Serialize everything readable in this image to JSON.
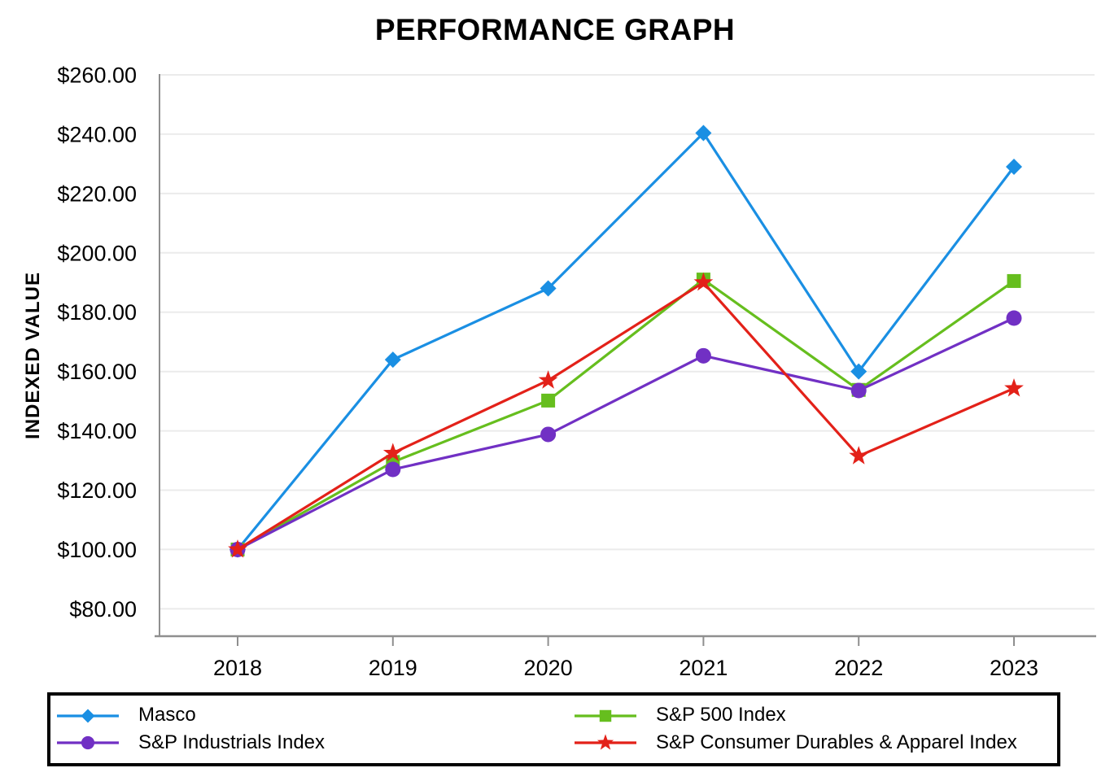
{
  "title": "PERFORMANCE GRAPH",
  "chart_data": {
    "type": "line",
    "title": "PERFORMANCE GRAPH",
    "xlabel": "",
    "ylabel": "INDEXED VALUE",
    "x": [
      2018,
      2019,
      2020,
      2021,
      2022,
      2023
    ],
    "x_tick_labels": [
      "2018",
      "2019",
      "2020",
      "2021",
      "2022",
      "2023"
    ],
    "y_ticks": [
      260,
      240,
      220,
      200,
      180,
      160,
      140,
      120,
      100,
      80
    ],
    "y_tick_labels": [
      "$260.00",
      "$240.00",
      "$220.00",
      "$200.00",
      "$180.00",
      "$160.00",
      "$140.00",
      "$120.00",
      "$100.00",
      "$80.00"
    ],
    "ylim": [
      70,
      260
    ],
    "grid": "horizontal",
    "legend_position": "bottom",
    "series": [
      {
        "name": "Masco",
        "marker": "diamond",
        "color": "#1A8FE3",
        "values": [
          100.0,
          164.0,
          188.0,
          240.4,
          160.0,
          229.0
        ]
      },
      {
        "name": "S&P 500 Index",
        "marker": "square",
        "color": "#66BE1E",
        "values": [
          100.0,
          129.5,
          150.2,
          191.0,
          153.8,
          190.5
        ]
      },
      {
        "name": "S&P Industrials Index",
        "marker": "circle",
        "color": "#7130C4",
        "values": [
          100.0,
          127.0,
          138.8,
          165.3,
          153.6,
          178.0
        ]
      },
      {
        "name": "S&P Consumer Durables & Apparel Index",
        "marker": "star",
        "color": "#E32119",
        "values": [
          100.0,
          132.5,
          157.0,
          190.0,
          131.5,
          154.3
        ]
      }
    ]
  }
}
